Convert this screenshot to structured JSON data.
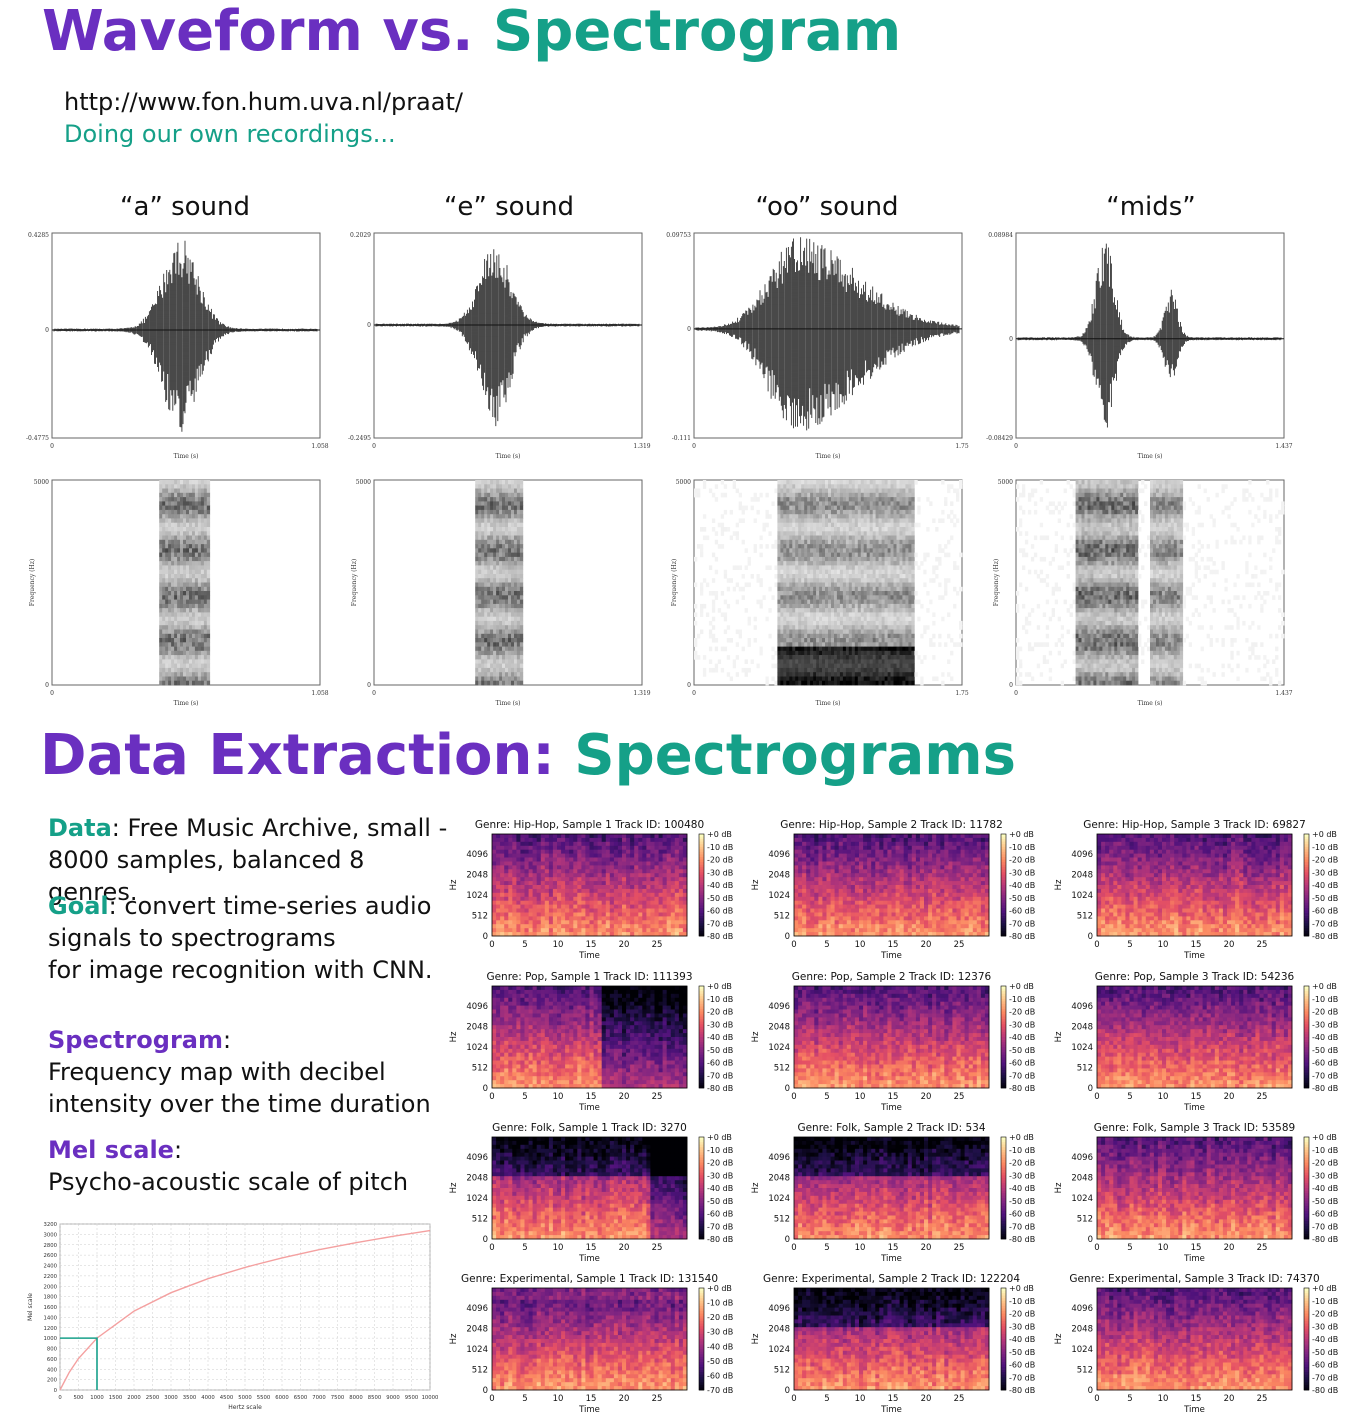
{
  "section1": {
    "title_part1": "Waveform vs.",
    "title_part2": "Spectrogram",
    "link": "http://www.fon.hum.uva.nl/praat/",
    "subtitle": "Doing our own recordings..."
  },
  "sounds": [
    {
      "title": "“a” sound",
      "wave_ymax": "0.4285",
      "wave_ymin": "-0.4775",
      "xmax": "1.058"
    },
    {
      "title": "“e” sound",
      "wave_ymax": "0.2029",
      "wave_ymin": "-0.2495",
      "xmax": "1.319"
    },
    {
      "title": "“oo” sound",
      "wave_ymax": "0.09753",
      "wave_ymin": "-0.111",
      "xmax": "1.75"
    },
    {
      "title": "“mids”",
      "wave_ymax": "0.08984",
      "wave_ymin": "-0.08429",
      "xmax": "1.437"
    }
  ],
  "praat_labels": {
    "zero": "0",
    "time_label": "Time (s)",
    "freq_label": "Frequency (Hz)",
    "freq_max": "5000"
  },
  "section2": {
    "title_part1": "Data Extraction:",
    "title_part2": "Spectrograms",
    "data_label": "Data",
    "data_text": ": Free Music Archive, small -",
    "data_text2": "8000 samples, balanced 8 genres.",
    "goal_label": "Goal",
    "goal_text": ": convert time-series audio",
    "goal_text2": "signals to spectrograms",
    "goal_text3": "for  image recognition with CNN.",
    "spec_label": "Spectrogram",
    "spec_colon": ":",
    "spec_text": "Frequency map with decibel",
    "spec_text2": "intensity over the time duration",
    "mel_label": "Mel scale",
    "mel_colon": ":",
    "mel_text": "Psycho-acoustic scale of pitch"
  },
  "mel_chart": {
    "chart_data": {
      "type": "line",
      "xlabel": "Hertz scale",
      "ylabel": "Mel scale",
      "x_ticks": [
        0,
        500,
        1000,
        1500,
        2000,
        2500,
        3000,
        3500,
        4000,
        4500,
        5000,
        5500,
        6000,
        6500,
        7000,
        7500,
        8000,
        8500,
        9000,
        9500,
        10000
      ],
      "y_ticks": [
        0,
        200,
        400,
        600,
        800,
        1000,
        1200,
        1400,
        1600,
        1800,
        2000,
        2200,
        2400,
        2600,
        2800,
        3000,
        3200
      ],
      "xlim": [
        0,
        10000
      ],
      "ylim": [
        0,
        3200
      ],
      "series": [
        {
          "x": [
            0,
            250,
            500,
            1000,
            2000,
            3000,
            4000,
            5000,
            6000,
            7000,
            8000,
            9000,
            10000
          ],
          "values": [
            0,
            344,
            607,
            1000,
            1521,
            1876,
            2146,
            2363,
            2546,
            2704,
            2840,
            2962,
            3073
          ]
        }
      ],
      "highlight_point": {
        "x": 1000,
        "y": 1000
      },
      "grid": true,
      "colors": {
        "line": "#f4a0a0",
        "highlight": "#17a08a"
      }
    }
  },
  "spectrograms": {
    "y_ticks": [
      "4096",
      "2048",
      "1024",
      "512",
      "0"
    ],
    "x_ticks": [
      "0",
      "5",
      "10",
      "15",
      "20",
      "25"
    ],
    "ylabel": "Hz",
    "xlabel": "Time",
    "colorbar_ticks": [
      "+0 dB",
      "-10 dB",
      "-20 dB",
      "-30 dB",
      "-40 dB",
      "-50 dB",
      "-60 dB",
      "-70 dB",
      "-80 dB"
    ],
    "colorbar_ticks_short": [
      "+0 dB",
      "-10 dB",
      "-20 dB",
      "-30 dB",
      "-40 dB",
      "-50 dB",
      "-60 dB",
      "-70 dB"
    ],
    "items": [
      {
        "title": "Genre: Hip-Hop, Sample 1 Track ID: 100480"
      },
      {
        "title": "Genre: Hip-Hop, Sample 2 Track ID: 11782"
      },
      {
        "title": "Genre: Hip-Hop, Sample 3 Track ID: 69827"
      },
      {
        "title": "Genre: Pop, Sample 1 Track ID: 111393"
      },
      {
        "title": "Genre: Pop, Sample 2 Track ID: 12376"
      },
      {
        "title": "Genre: Pop, Sample 3 Track ID: 54236"
      },
      {
        "title": "Genre: Folk, Sample 1 Track ID: 3270"
      },
      {
        "title": "Genre: Folk, Sample 2 Track ID: 534"
      },
      {
        "title": "Genre: Folk, Sample 3 Track ID: 53589"
      },
      {
        "title": "Genre: Experimental, Sample 1 Track ID: 131540"
      },
      {
        "title": "Genre: Experimental, Sample 2 Track ID: 122204"
      },
      {
        "title": "Genre: Experimental, Sample 3 Track ID: 74370"
      }
    ]
  }
}
